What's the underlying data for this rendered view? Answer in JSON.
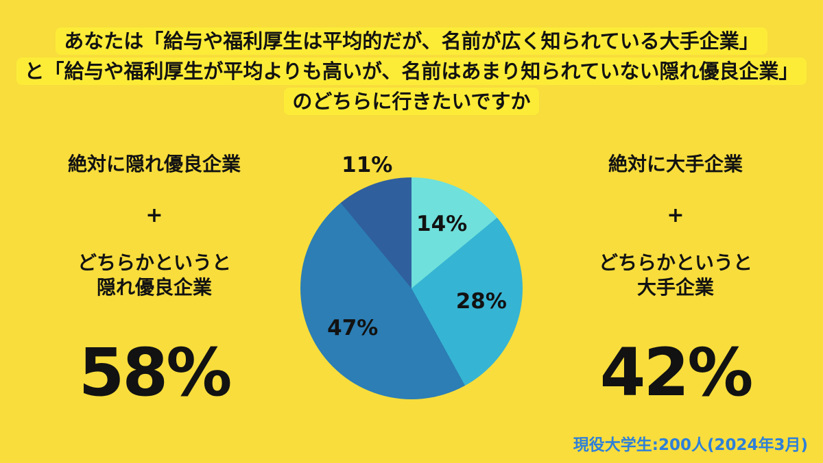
{
  "page": {
    "background_color": "#F8DD3C",
    "highlight_color": "#FCEC38",
    "text_color": "#121212"
  },
  "title": {
    "lines": [
      "あなたは「給与や福利厚生は平均的だが、名前が広く知られている大手企業」",
      "と「給与や福利厚生が平均よりも高いが、名前はあまり知られていない隠れ優良企業」",
      "のどちらに行きたいですか"
    ]
  },
  "left_summary": {
    "option_top": "絶対に隠れ優良企業",
    "plus": "+",
    "option_bottom_line1": "どちらかというと",
    "option_bottom_line2": "隠れ優良企業",
    "total": "58%"
  },
  "right_summary": {
    "option_top": "絶対に大手企業",
    "plus": "+",
    "option_bottom_line1": "どちらかというと",
    "option_bottom_line2": "大手企業",
    "total": "42%"
  },
  "footnote": {
    "text": "現役大学生:200人(2024年3月)",
    "color": "#2E7FD8"
  },
  "chart_data": {
    "type": "pie",
    "start_angle_deg": 0,
    "direction": "clockwise",
    "unit": "%",
    "segments": [
      {
        "label": "14%",
        "value": 14,
        "color": "#6FE0DB"
      },
      {
        "label": "28%",
        "value": 28,
        "color": "#36B4D3"
      },
      {
        "label": "47%",
        "value": 47,
        "color": "#2C7EB5"
      },
      {
        "label": "11%",
        "value": 11,
        "color": "#2F5F9D"
      }
    ],
    "groups": [
      {
        "side": "left",
        "label": "絶対に隠れ優良企業 + どちらかというと隠れ優良企業",
        "total_percent": 58
      },
      {
        "side": "right",
        "label": "絶対に大手企業 + どちらかというと大手企業",
        "total_percent": 42
      }
    ],
    "legend": "none"
  }
}
